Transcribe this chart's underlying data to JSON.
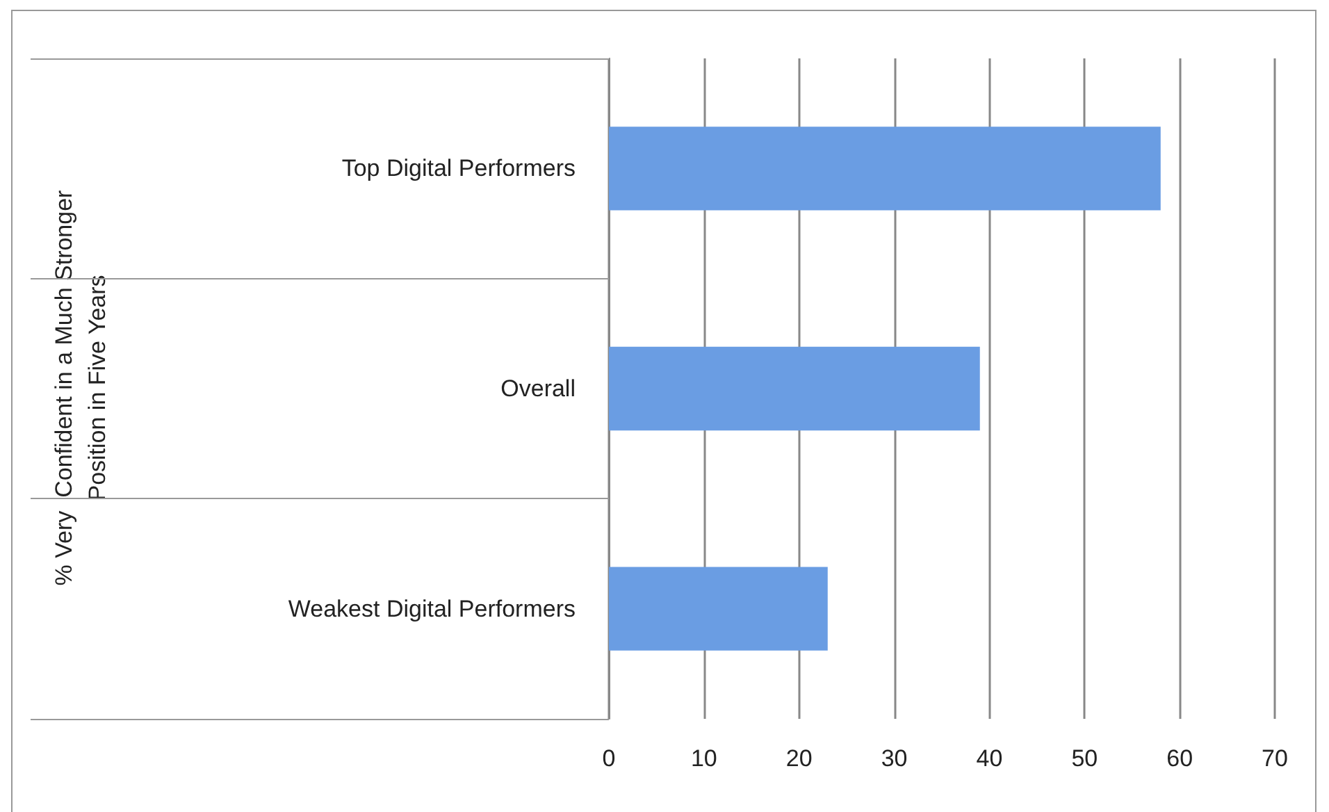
{
  "chart_data": {
    "type": "bar",
    "orientation": "horizontal",
    "annotations": [
      "% Very  Confident in a Much Stronger\nPosition in Five Years"
    ],
    "categories": [
      "Top Digital Performers",
      "Overall",
      "Weakest Digital Performers"
    ],
    "values": [
      58,
      39,
      23
    ],
    "color": "#6a9de3",
    "xlim": [
      0,
      70
    ],
    "xticks": [
      0,
      10,
      20,
      30,
      40,
      50,
      60,
      70
    ],
    "grid": "x"
  }
}
